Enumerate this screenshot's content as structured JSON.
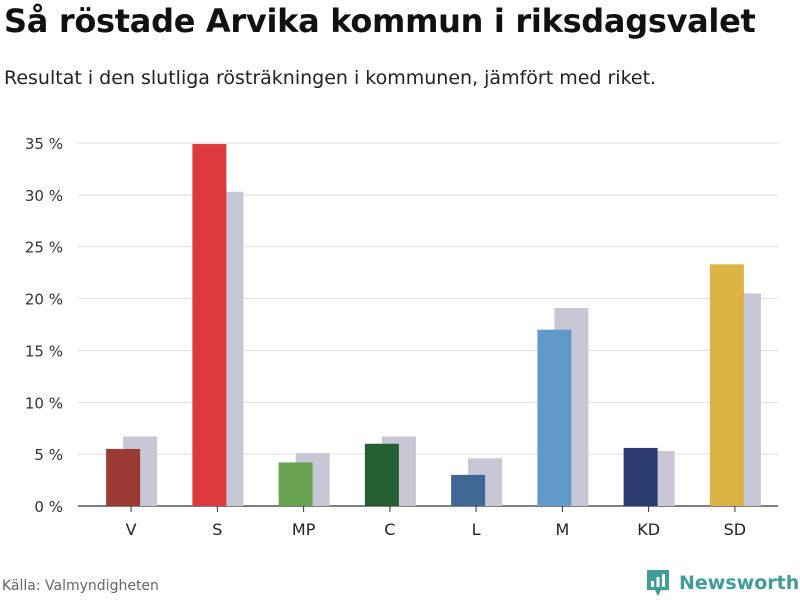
{
  "title": "Så röstade Arvika kommun i riksdagsvalet",
  "subtitle": "Resultat i den slutliga rösträkningen i kommunen, jämfört med riket.",
  "source": "Källa: Valmyndigheten",
  "brand": {
    "name": "Newsworthy",
    "color": "#3f9c97",
    "icon": "bar-chart-badge-icon"
  },
  "chart_data": {
    "type": "bar",
    "categories": [
      "V",
      "S",
      "MP",
      "C",
      "L",
      "M",
      "KD",
      "SD"
    ],
    "series": [
      {
        "values": [
          5.5,
          34.9,
          4.2,
          6.0,
          3.0,
          17.0,
          5.6,
          23.3
        ]
      },
      {
        "values": [
          6.7,
          30.3,
          5.1,
          6.7,
          4.6,
          19.1,
          5.3,
          20.5
        ]
      }
    ],
    "bar_colors": [
      "#9b3a34",
      "#dc3a3f",
      "#66a24f",
      "#265e33",
      "#3e6796",
      "#6199c8",
      "#2c3a72",
      "#ddb346"
    ],
    "comparison_color": "#c8c7d6",
    "ylim": [
      0,
      35
    ],
    "yticks": [
      0,
      5,
      10,
      15,
      20,
      25,
      30,
      35
    ],
    "ytick_labels": [
      "0 %",
      "5 %",
      "10 %",
      "15 %",
      "20 %",
      "25 %",
      "30 %",
      "35 %"
    ],
    "grid": true,
    "xlabel": "",
    "ylabel": ""
  }
}
